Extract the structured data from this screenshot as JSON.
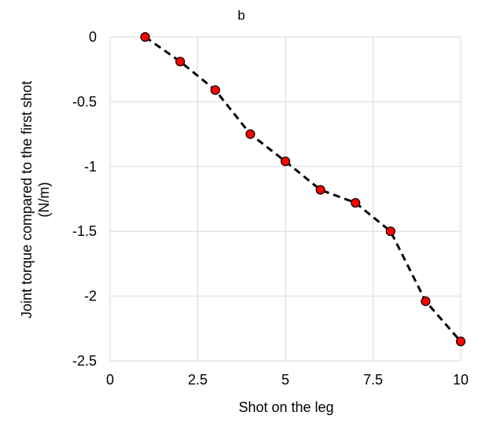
{
  "chart_data": {
    "type": "scatter",
    "title": "b",
    "xlabel": "Shot on the leg",
    "ylabel_line1": "Joint torque compared to the first shot",
    "ylabel_line2": "(N/m)",
    "xlim": [
      0,
      10
    ],
    "ylim": [
      -2.5,
      0
    ],
    "x_ticks": [
      0,
      2.5,
      5,
      7.5,
      10
    ],
    "x_tick_labels": [
      "0",
      "2.5",
      "5",
      "7.5",
      "10"
    ],
    "y_ticks": [
      0,
      -0.5,
      -1,
      -1.5,
      -2,
      -2.5
    ],
    "y_tick_labels": [
      "0",
      "-0.5",
      "-1",
      "-1.5",
      "-2",
      "-2.5"
    ],
    "grid": true,
    "series": [
      {
        "x": [
          1,
          2,
          3,
          4,
          5,
          6,
          7,
          8,
          9,
          10
        ],
        "y": [
          0,
          -0.19,
          -0.41,
          -0.75,
          -0.96,
          -1.18,
          -1.28,
          -1.5,
          -2.04,
          -2.35
        ],
        "marker_color": "#ff0000",
        "line_color": "#000000",
        "line_style": "dashed"
      }
    ]
  }
}
